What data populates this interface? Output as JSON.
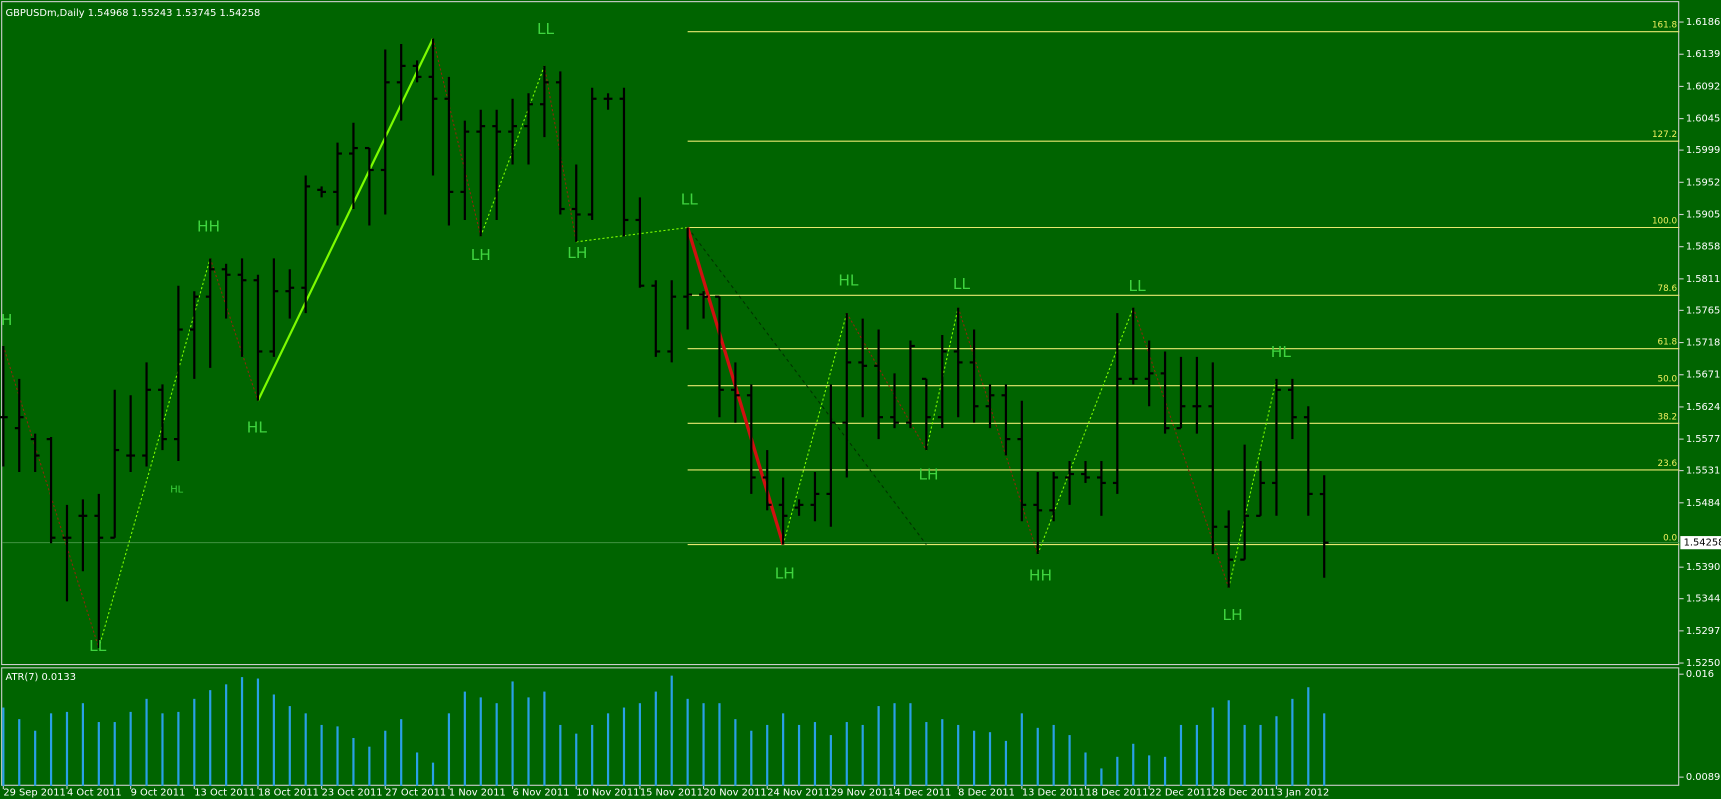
{
  "chart_data": [
    {
      "type": "ohlc",
      "title": "GBPUSDm,Daily  1.54968 1.55243 1.53745 1.54258",
      "categories": [
        "29 Sep 2011",
        null,
        null,
        null,
        "4 Oct 2011",
        null,
        null,
        null,
        "9 Oct 2011",
        null,
        null,
        null,
        "13 Oct 2011",
        null,
        null,
        null,
        "18 Oct 2011",
        null,
        null,
        null,
        "23 Oct 2011",
        null,
        null,
        null,
        "27 Oct 2011",
        null,
        null,
        null,
        "1 Nov 2011",
        null,
        null,
        null,
        "6 Nov 2011",
        null,
        null,
        null,
        "10 Nov 2011",
        null,
        null,
        null,
        "15 Nov 2011",
        null,
        null,
        null,
        "20 Nov 2011",
        null,
        null,
        null,
        "24 Nov 2011",
        null,
        null,
        null,
        "29 Nov 2011",
        null,
        null,
        null,
        "4 Dec 2011",
        null,
        null,
        null,
        "8 Dec 2011",
        null,
        null,
        null,
        "13 Dec 2011",
        null,
        null,
        null,
        "18 Dec 2011",
        null,
        null,
        null,
        "22 Dec 2011",
        null,
        null,
        null,
        "28 Dec 2011",
        null,
        null,
        null,
        "3 Jan 2012",
        null,
        null,
        null
      ],
      "open": [
        1.5609,
        1.5593,
        1.5577,
        1.5577,
        1.5433,
        1.5465,
        1.5465,
        1.5433,
        1.5553,
        1.5553,
        1.5649,
        1.5577,
        1.5737,
        1.5785,
        1.5825,
        1.5817,
        1.5809,
        1.5705,
        1.5793,
        1.5798,
        1.5941,
        1.5938,
        1.5994,
        1.6002,
        1.597,
        1.6098,
        1.6122,
        1.6106,
        1.6074,
        1.5938,
        1.6026,
        1.6034,
        1.6026,
        1.6034,
        1.6066,
        1.6098,
        1.5913,
        1.5905,
        1.6074,
        1.6074,
        1.5897,
        1.5801,
        1.5705,
        1.5785,
        1.5788,
        1.5785,
        1.5649,
        1.5641,
        1.5521,
        1.5481,
        1.5477,
        1.5481,
        1.5497,
        1.5601,
        1.5689,
        1.5684,
        1.5609,
        1.5601,
        1.5665,
        1.5609,
        1.5705,
        1.5689,
        1.5625,
        1.5641,
        1.5577,
        1.5481,
        1.5473,
        1.5521,
        1.5526,
        1.5521,
        1.5513,
        1.5665,
        1.5665,
        1.5673,
        1.5593,
        1.5625,
        1.5625,
        1.5449,
        1.5401,
        1.5465,
        1.5513,
        1.5649,
        1.5609,
        1.54968
      ],
      "high": [
        1.5713,
        1.5665,
        1.5585,
        1.558,
        1.5481,
        1.5489,
        1.5497,
        1.5649,
        1.5641,
        1.5689,
        1.5657,
        1.5801,
        1.5793,
        1.5841,
        1.5833,
        1.5841,
        1.5817,
        1.5841,
        1.5825,
        1.5962,
        1.5946,
        1.601,
        1.6039,
        1.6002,
        1.6146,
        1.6154,
        1.613,
        1.6162,
        1.6106,
        1.6042,
        1.6058,
        1.6058,
        1.6074,
        1.6082,
        1.6122,
        1.6114,
        1.5978,
        1.609,
        1.6082,
        1.609,
        1.593,
        1.5809,
        1.5809,
        1.5886,
        1.5793,
        1.5785,
        1.5689,
        1.5657,
        1.5561,
        1.5521,
        1.5489,
        1.5529,
        1.5657,
        1.5761,
        1.5753,
        1.5737,
        1.5673,
        1.5721,
        1.5665,
        1.5729,
        1.5769,
        1.5737,
        1.5657,
        1.5657,
        1.5633,
        1.5529,
        1.5529,
        1.5545,
        1.5545,
        1.5545,
        1.5761,
        1.5769,
        1.5721,
        1.5705,
        1.5697,
        1.5697,
        1.5689,
        1.5473,
        1.5569,
        1.5545,
        1.5665,
        1.5665,
        1.5625,
        1.55243
      ],
      "low": [
        1.5537,
        1.5529,
        1.5529,
        1.5425,
        1.534,
        1.5384,
        1.5272,
        1.5433,
        1.5529,
        1.5537,
        1.5561,
        1.5545,
        1.5665,
        1.5681,
        1.5753,
        1.5697,
        1.5633,
        1.5697,
        1.5753,
        1.5761,
        1.593,
        1.5889,
        1.5913,
        1.5889,
        1.5905,
        1.6042,
        1.6098,
        1.5962,
        1.5889,
        1.5897,
        1.5873,
        1.5897,
        1.5978,
        1.5978,
        1.6018,
        1.5905,
        1.5865,
        1.5897,
        1.6058,
        1.5873,
        1.5798,
        1.5697,
        1.5689,
        1.5737,
        1.5753,
        1.5609,
        1.5601,
        1.5497,
        1.5473,
        1.5423,
        1.5465,
        1.5457,
        1.5449,
        1.5521,
        1.5609,
        1.5577,
        1.5593,
        1.5593,
        1.5561,
        1.5593,
        1.5609,
        1.5601,
        1.5593,
        1.5553,
        1.5457,
        1.5409,
        1.5457,
        1.5481,
        1.5513,
        1.5465,
        1.5497,
        1.5657,
        1.5625,
        1.5585,
        1.5593,
        1.5585,
        1.5409,
        1.536,
        1.5401,
        1.5465,
        1.5465,
        1.5577,
        1.5465,
        1.53745
      ],
      "close": [
        1.5609,
        1.5609,
        1.5553,
        1.5433,
        1.5433,
        1.5465,
        1.5433,
        1.5561,
        1.5553,
        1.5649,
        1.5577,
        1.5737,
        1.5785,
        1.5825,
        1.5817,
        1.5809,
        1.5705,
        1.5793,
        1.5798,
        1.5946,
        1.5938,
        1.5994,
        1.6002,
        1.597,
        1.6098,
        1.6122,
        1.6106,
        1.6074,
        1.5938,
        1.6026,
        1.6034,
        1.6026,
        1.6034,
        1.6066,
        1.6098,
        1.5913,
        1.5905,
        1.6074,
        1.6074,
        1.5897,
        1.5801,
        1.5705,
        1.5785,
        1.5788,
        1.5785,
        1.5649,
        1.5641,
        1.5521,
        1.5481,
        1.5465,
        1.5481,
        1.5497,
        1.5601,
        1.5689,
        1.5684,
        1.5609,
        1.5601,
        1.5713,
        1.5609,
        1.5705,
        1.5689,
        1.5625,
        1.5641,
        1.5577,
        1.5481,
        1.5473,
        1.5521,
        1.5526,
        1.5521,
        1.5513,
        1.5665,
        1.5665,
        1.5673,
        1.5593,
        1.5625,
        1.5625,
        1.5449,
        1.5401,
        1.5465,
        1.5513,
        1.5649,
        1.5609,
        1.5497,
        1.54258
      ],
      "color": "#000000",
      "ylim": [
        1.5247,
        1.6215
      ],
      "yticks": [
        {
          "value": 1.6186,
          "label": "1.61860"
        },
        {
          "value": 1.6139,
          "label": "1.61390"
        },
        {
          "value": 1.6092,
          "label": "1.60920"
        },
        {
          "value": 1.6045,
          "label": "1.60450"
        },
        {
          "value": 1.5999,
          "label": "1.59990"
        },
        {
          "value": 1.5952,
          "label": "1.59520"
        },
        {
          "value": 1.5905,
          "label": "1.59050"
        },
        {
          "value": 1.5858,
          "label": "1.58580"
        },
        {
          "value": 1.5811,
          "label": "1.58110"
        },
        {
          "value": 1.5765,
          "label": "1.57650"
        },
        {
          "value": 1.5718,
          "label": "1.57180"
        },
        {
          "value": 1.5671,
          "label": "1.56710"
        },
        {
          "value": 1.5624,
          "label": "1.56240"
        },
        {
          "value": 1.5577,
          "label": "1.55770"
        },
        {
          "value": 1.5531,
          "label": "1.55310"
        },
        {
          "value": 1.5484,
          "label": "1.54840"
        },
        {
          "value": 1.539,
          "label": "1.53900"
        },
        {
          "value": 1.5344,
          "label": "1.53440"
        },
        {
          "value": 1.5297,
          "label": "1.52970"
        },
        {
          "value": 1.525,
          "label": "1.52500"
        }
      ],
      "last_price": 1.54258,
      "fib": {
        "labels": [
          "161.8",
          "127.2",
          "100.0",
          "78.6",
          "61.8",
          "50.0",
          "38.2",
          "23.6",
          "0.0"
        ],
        "prices": [
          1.6172,
          1.6012,
          1.5886,
          1.5787,
          1.5709,
          1.5655,
          1.56,
          1.5532,
          1.5423
        ],
        "color": "#e8e870"
      },
      "annotations": [
        "H",
        "LL",
        "HH",
        "HL",
        "HL",
        "LH",
        "LL",
        "LH",
        "LL",
        "LH",
        "HL",
        "LH",
        "LL",
        "HH",
        "LL",
        "LH",
        "HL"
      ],
      "grid": false
    },
    {
      "type": "bar",
      "title": "ATR(7) 0.0133",
      "values": [
        0.0137,
        0.0129,
        0.0121,
        0.0133,
        0.0134,
        0.014,
        0.0127,
        0.0127,
        0.0134,
        0.0143,
        0.0133,
        0.0134,
        0.0143,
        0.0149,
        0.0153,
        0.0158,
        0.0157,
        0.0146,
        0.0138,
        0.0133,
        0.0125,
        0.0124,
        0.0116,
        0.011,
        0.0121,
        0.0129,
        0.0106,
        0.0099,
        0.0133,
        0.0148,
        0.0144,
        0.014,
        0.0155,
        0.0144,
        0.0148,
        0.0125,
        0.0119,
        0.0125,
        0.0133,
        0.0137,
        0.014,
        0.0148,
        0.0159,
        0.0143,
        0.014,
        0.014,
        0.0129,
        0.0121,
        0.0125,
        0.0133,
        0.0125,
        0.0127,
        0.0118,
        0.0127,
        0.0125,
        0.0138,
        0.014,
        0.014,
        0.0127,
        0.0129,
        0.0125,
        0.0121,
        0.012,
        0.0114,
        0.0133,
        0.0123,
        0.0125,
        0.0118,
        0.0106,
        0.0095,
        0.0103,
        0.0112,
        0.0104,
        0.0103,
        0.0125,
        0.0125,
        0.0137,
        0.0142,
        0.0125,
        0.0125,
        0.0131,
        0.0143,
        0.0151,
        0.0133
      ],
      "color": "#2aa0e6",
      "ylim": [
        0.0083,
        0.0164
      ],
      "yticks": [
        0.016,
        0.0089
      ]
    }
  ]
}
